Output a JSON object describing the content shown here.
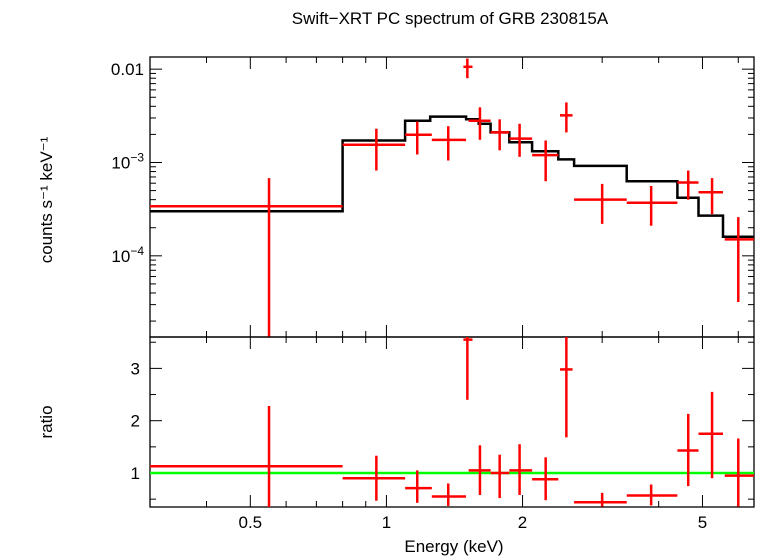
{
  "chart_data": [
    {
      "type": "scatter",
      "title": "Swift−XRT PC spectrum of GRB 230815A",
      "ylabel": "counts s⁻¹ keV⁻¹",
      "xscale": "log",
      "yscale": "log",
      "xlim": [
        0.3,
        6.5
      ],
      "ylim": [
        1.35e-05,
        0.0135
      ],
      "yticks": [
        {
          "value": 0.01,
          "label": "0.01",
          "base": "",
          "exp": ""
        },
        {
          "value": 0.001,
          "label": "",
          "base": "10",
          "exp": "−3"
        },
        {
          "value": 0.0001,
          "label": "",
          "base": "10",
          "exp": "−4"
        }
      ],
      "colors": {
        "data": "#ff0000",
        "model": "#000000"
      },
      "series": [
        {
          "type": "errorbar",
          "points": [
            {
              "x": 0.55,
              "xlo": 0.3,
              "xhi": 0.8,
              "y": 0.00034,
              "ylo": 1.35e-05,
              "yhi": 0.00068
            },
            {
              "x": 0.95,
              "xlo": 0.8,
              "xhi": 1.1,
              "y": 0.00155,
              "ylo": 0.00082,
              "yhi": 0.0023
            },
            {
              "x": 1.17,
              "xlo": 1.1,
              "xhi": 1.26,
              "y": 0.00198,
              "ylo": 0.00122,
              "yhi": 0.00275
            },
            {
              "x": 1.37,
              "xlo": 1.26,
              "xhi": 1.5,
              "y": 0.00175,
              "ylo": 0.00105,
              "yhi": 0.00245
            },
            {
              "x": 1.51,
              "xlo": 1.48,
              "xhi": 1.55,
              "y": 0.0106,
              "ylo": 0.008,
              "yhi": 0.013
            },
            {
              "x": 1.61,
              "xlo": 1.52,
              "xhi": 1.7,
              "y": 0.0028,
              "ylo": 0.00175,
              "yhi": 0.0039
            },
            {
              "x": 1.78,
              "xlo": 1.7,
              "xhi": 1.87,
              "y": 0.0021,
              "ylo": 0.00135,
              "yhi": 0.0029
            },
            {
              "x": 1.97,
              "xlo": 1.87,
              "xhi": 2.1,
              "y": 0.0018,
              "ylo": 0.00115,
              "yhi": 0.0026
            },
            {
              "x": 2.25,
              "xlo": 2.1,
              "xhi": 2.4,
              "y": 0.0012,
              "ylo": 0.00063,
              "yhi": 0.00172
            },
            {
              "x": 2.5,
              "xlo": 2.42,
              "xhi": 2.58,
              "y": 0.0032,
              "ylo": 0.0021,
              "yhi": 0.0044
            },
            {
              "x": 3.0,
              "xlo": 2.6,
              "xhi": 3.4,
              "y": 0.0004,
              "ylo": 0.00022,
              "yhi": 0.00059
            },
            {
              "x": 3.85,
              "xlo": 3.4,
              "xhi": 4.4,
              "y": 0.00037,
              "ylo": 0.00021,
              "yhi": 0.00056
            },
            {
              "x": 4.65,
              "xlo": 4.4,
              "xhi": 4.9,
              "y": 0.00061,
              "ylo": 0.0004,
              "yhi": 0.00082
            },
            {
              "x": 5.25,
              "xlo": 4.9,
              "xhi": 5.55,
              "y": 0.00048,
              "ylo": 0.00028,
              "yhi": 0.00068
            },
            {
              "x": 6.0,
              "xlo": 5.6,
              "xhi": 6.5,
              "y": 0.00015,
              "ylo": 3.2e-05,
              "yhi": 0.00026
            }
          ]
        },
        {
          "type": "step",
          "bins": [
            {
              "xlo": 0.3,
              "xhi": 0.8,
              "y": 0.0003
            },
            {
              "xlo": 0.8,
              "xhi": 1.1,
              "y": 0.00172
            },
            {
              "xlo": 1.1,
              "xhi": 1.25,
              "y": 0.0028
            },
            {
              "xlo": 1.25,
              "xhi": 1.5,
              "y": 0.0031
            },
            {
              "xlo": 1.5,
              "xhi": 1.6,
              "y": 0.0029
            },
            {
              "xlo": 1.6,
              "xhi": 1.7,
              "y": 0.0026
            },
            {
              "xlo": 1.7,
              "xhi": 1.87,
              "y": 0.0021
            },
            {
              "xlo": 1.87,
              "xhi": 2.1,
              "y": 0.00165
            },
            {
              "xlo": 2.1,
              "xhi": 2.4,
              "y": 0.00132
            },
            {
              "xlo": 2.4,
              "xhi": 2.6,
              "y": 0.00108
            },
            {
              "xlo": 2.6,
              "xhi": 3.4,
              "y": 0.00092
            },
            {
              "xlo": 3.4,
              "xhi": 4.4,
              "y": 0.00063
            },
            {
              "xlo": 4.4,
              "xhi": 4.9,
              "y": 0.00042
            },
            {
              "xlo": 4.9,
              "xhi": 5.55,
              "y": 0.00027
            },
            {
              "xlo": 5.55,
              "xhi": 6.5,
              "y": 0.00016
            }
          ]
        }
      ]
    },
    {
      "type": "scatter",
      "ylabel": "ratio",
      "xlabel": "Energy (keV)",
      "xscale": "log",
      "xlim": [
        0.3,
        6.5
      ],
      "ylim": [
        0.35,
        3.6
      ],
      "yticks": [
        1,
        2,
        3
      ],
      "xticks": [
        {
          "value": 0.5,
          "label": "0.5"
        },
        {
          "value": 1,
          "label": "1"
        },
        {
          "value": 2,
          "label": "2"
        },
        {
          "value": 5,
          "label": "5"
        }
      ],
      "colors": {
        "data": "#ff0000",
        "reference": "#00ff00"
      },
      "reference_line": 1,
      "series": [
        {
          "type": "errorbar",
          "points": [
            {
              "x": 0.55,
              "xlo": 0.3,
              "xhi": 0.8,
              "y": 1.13,
              "ylo": 0.35,
              "yhi": 2.28
            },
            {
              "x": 0.95,
              "xlo": 0.8,
              "xhi": 1.1,
              "y": 0.9,
              "ylo": 0.47,
              "yhi": 1.33
            },
            {
              "x": 1.17,
              "xlo": 1.1,
              "xhi": 1.26,
              "y": 0.71,
              "ylo": 0.43,
              "yhi": 1.05
            },
            {
              "x": 1.37,
              "xlo": 1.26,
              "xhi": 1.5,
              "y": 0.55,
              "ylo": 0.37,
              "yhi": 0.8
            },
            {
              "x": 1.51,
              "xlo": 1.48,
              "xhi": 1.55,
              "y": 3.55,
              "ylo": 2.4,
              "yhi": 3.6
            },
            {
              "x": 1.61,
              "xlo": 1.52,
              "xhi": 1.7,
              "y": 1.05,
              "ylo": 0.58,
              "yhi": 1.53
            },
            {
              "x": 1.78,
              "xlo": 1.7,
              "xhi": 1.87,
              "y": 1.0,
              "ylo": 0.52,
              "yhi": 1.35
            },
            {
              "x": 1.97,
              "xlo": 1.87,
              "xhi": 2.1,
              "y": 1.05,
              "ylo": 0.58,
              "yhi": 1.55
            },
            {
              "x": 2.25,
              "xlo": 2.1,
              "xhi": 2.4,
              "y": 0.88,
              "ylo": 0.48,
              "yhi": 1.3
            },
            {
              "x": 2.5,
              "xlo": 2.42,
              "xhi": 2.58,
              "y": 2.98,
              "ylo": 1.68,
              "yhi": 3.6
            },
            {
              "x": 3.0,
              "xlo": 2.6,
              "xhi": 3.4,
              "y": 0.44,
              "ylo": 0.36,
              "yhi": 0.62
            },
            {
              "x": 3.85,
              "xlo": 3.4,
              "xhi": 4.4,
              "y": 0.57,
              "ylo": 0.38,
              "yhi": 0.78
            },
            {
              "x": 4.65,
              "xlo": 4.4,
              "xhi": 4.9,
              "y": 1.43,
              "ylo": 0.75,
              "yhi": 2.13
            },
            {
              "x": 5.25,
              "xlo": 4.9,
              "xhi": 5.55,
              "y": 1.75,
              "ylo": 0.9,
              "yhi": 2.55
            },
            {
              "x": 6.0,
              "xlo": 5.6,
              "xhi": 6.5,
              "y": 0.95,
              "ylo": 0.36,
              "yhi": 1.66
            }
          ]
        }
      ]
    }
  ]
}
